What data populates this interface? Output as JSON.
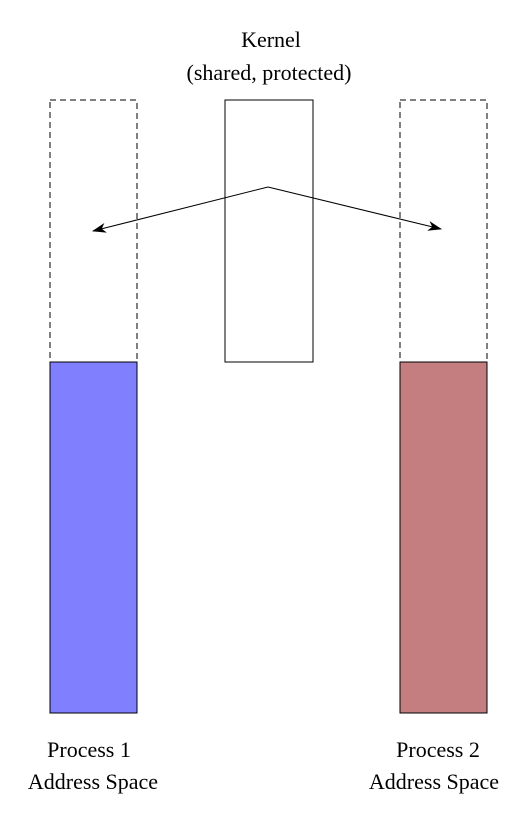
{
  "kernel": {
    "title": "Kernel",
    "subtitle": "(shared, protected)"
  },
  "process1": {
    "line1": "Process 1",
    "line2": "Address Space",
    "fill_color": "#8080ff"
  },
  "process2": {
    "line1": "Process 2",
    "line2": "Address Space",
    "fill_color": "#c47e80"
  },
  "colors": {
    "stroke": "#000000",
    "background": "#ffffff"
  }
}
